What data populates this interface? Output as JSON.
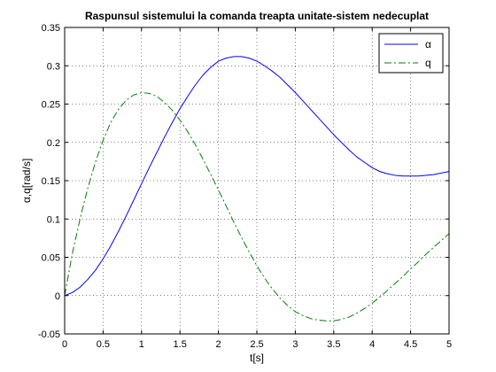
{
  "chart_data": {
    "type": "line",
    "title": "Raspunsul sistemului la comanda treapta unitate-sistem nedecuplat",
    "xlabel": "t[s]",
    "ylabel": "α,q[rad/s]",
    "xlim": [
      0,
      5
    ],
    "ylim": [
      -0.05,
      0.35
    ],
    "xticks": [
      0,
      0.5,
      1,
      1.5,
      2,
      2.5,
      3,
      3.5,
      4,
      4.5,
      5
    ],
    "xtick_labels": [
      "0",
      "0.5",
      "1",
      "1.5",
      "2",
      "2.5",
      "3",
      "3.5",
      "4",
      "4.5",
      "5"
    ],
    "yticks": [
      -0.05,
      0,
      0.05,
      0.1,
      0.15,
      0.2,
      0.25,
      0.3,
      0.35
    ],
    "ytick_labels": [
      "-0.05",
      "0",
      "0.05",
      "0.1",
      "0.15",
      "0.2",
      "0.25",
      "0.3",
      "0.35"
    ],
    "grid": true,
    "legend_position": "top-right",
    "series": [
      {
        "name": "α",
        "color": "#0000ff",
        "line_style": "solid",
        "x": [
          0,
          0.1,
          0.2,
          0.3,
          0.4,
          0.5,
          0.6,
          0.7,
          0.8,
          0.9,
          1.0,
          1.1,
          1.2,
          1.3,
          1.4,
          1.5,
          1.6,
          1.7,
          1.8,
          1.9,
          2.0,
          2.1,
          2.2,
          2.3,
          2.4,
          2.5,
          2.6,
          2.7,
          2.8,
          2.9,
          3.0,
          3.1,
          3.2,
          3.3,
          3.4,
          3.5,
          3.6,
          3.7,
          3.8,
          3.9,
          4.0,
          4.1,
          4.2,
          4.3,
          4.4,
          4.5,
          4.6,
          4.7,
          4.8,
          4.9,
          5.0
        ],
        "y": [
          0,
          0.004,
          0.011,
          0.021,
          0.033,
          0.048,
          0.065,
          0.084,
          0.104,
          0.125,
          0.146,
          0.167,
          0.187,
          0.207,
          0.226,
          0.244,
          0.26,
          0.275,
          0.288,
          0.298,
          0.306,
          0.31,
          0.312,
          0.312,
          0.31,
          0.306,
          0.3,
          0.293,
          0.285,
          0.275,
          0.265,
          0.254,
          0.243,
          0.232,
          0.221,
          0.21,
          0.2,
          0.19,
          0.181,
          0.174,
          0.167,
          0.162,
          0.159,
          0.157,
          0.156,
          0.156,
          0.156,
          0.157,
          0.158,
          0.16,
          0.162
        ]
      },
      {
        "name": "q",
        "color": "#008000",
        "line_style": "dashdot",
        "x": [
          0,
          0.1,
          0.2,
          0.3,
          0.4,
          0.5,
          0.6,
          0.7,
          0.8,
          0.9,
          1.0,
          1.1,
          1.2,
          1.3,
          1.4,
          1.5,
          1.6,
          1.7,
          1.8,
          1.9,
          2.0,
          2.1,
          2.2,
          2.3,
          2.4,
          2.5,
          2.6,
          2.7,
          2.8,
          2.9,
          3.0,
          3.1,
          3.2,
          3.3,
          3.4,
          3.5,
          3.6,
          3.7,
          3.8,
          3.9,
          4.0,
          4.1,
          4.2,
          4.3,
          4.4,
          4.5,
          4.6,
          4.7,
          4.8,
          4.9,
          5.0
        ],
        "y": [
          0,
          0.055,
          0.1,
          0.14,
          0.174,
          0.203,
          0.226,
          0.243,
          0.255,
          0.262,
          0.265,
          0.264,
          0.26,
          0.252,
          0.242,
          0.229,
          0.214,
          0.197,
          0.178,
          0.158,
          0.138,
          0.117,
          0.096,
          0.076,
          0.057,
          0.039,
          0.023,
          0.009,
          -0.003,
          -0.013,
          -0.021,
          -0.026,
          -0.03,
          -0.032,
          -0.033,
          -0.033,
          -0.031,
          -0.028,
          -0.023,
          -0.017,
          -0.01,
          -0.002,
          0.007,
          0.016,
          0.025,
          0.035,
          0.044,
          0.054,
          0.063,
          0.072,
          0.081
        ]
      }
    ]
  }
}
